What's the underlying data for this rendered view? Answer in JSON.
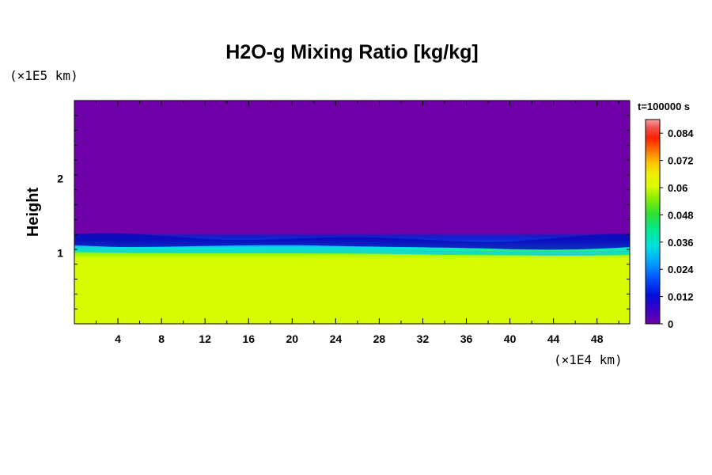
{
  "chart_data": {
    "type": "heatmap",
    "title": "H2O-g Mixing Ratio [kg/kg]",
    "time_label": "t=100000 s",
    "ylabel": "Height",
    "y_unit": "(×1E5 km)",
    "x_unit": "(×1E4 km)",
    "x_ticks": [
      4,
      8,
      12,
      16,
      20,
      24,
      28,
      32,
      36,
      40,
      44,
      48
    ],
    "y_ticks": [
      1,
      2
    ],
    "xlim": [
      0,
      51
    ],
    "ylim": [
      0.05,
      3.05
    ],
    "colorbar": {
      "ticks": [
        "0",
        "0.012",
        "0.024",
        "0.036",
        "0.048",
        "0.06",
        "0.072",
        "0.084"
      ],
      "tick_values": [
        0,
        0.012,
        0.024,
        0.036,
        0.048,
        0.06,
        0.072,
        0.084
      ],
      "range": [
        0,
        0.09
      ]
    },
    "field": {
      "upper_value": 0.0,
      "lower_value": 0.058,
      "boundary_height": 1.02,
      "transition_width": 0.15
    },
    "colors": {
      "upper": "#7000a8",
      "lower": "#d8fa00"
    }
  }
}
